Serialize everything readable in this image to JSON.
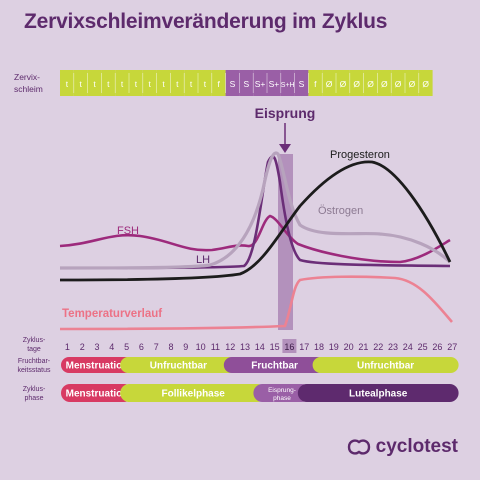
{
  "title": "Zervixschleimveränderung im Zyklus",
  "brand": "cyclotest",
  "mucus": {
    "label_lines": [
      "Zervix-",
      "schleim"
    ],
    "cells": [
      "t",
      "t",
      "t",
      "t",
      "t",
      "t",
      "t",
      "t",
      "t",
      "t",
      "t",
      "f",
      "S",
      "S",
      "S+",
      "S+",
      "S+H",
      "S",
      "f",
      "Ø",
      "Ø",
      "Ø",
      "Ø",
      "Ø",
      "Ø",
      "Ø",
      "Ø"
    ],
    "colors": {
      "t": "#c7d73a",
      "f": "#c7d73a",
      "S": "#9a5fa6",
      "S+": "#9a5fa6",
      "S+H": "#9a5fa6",
      "Ø": "#c7d73a"
    }
  },
  "ovulation": {
    "label": "Eisprung",
    "day": 16
  },
  "curves": {
    "fsh": "FSH",
    "lh": "LH",
    "progesterone": "Progesteron",
    "estrogen": "Östrogen",
    "temperature": "Temperaturverlauf"
  },
  "days": {
    "label_lines": [
      "Zyklus-",
      "tage"
    ],
    "values": [
      "1",
      "2",
      "3",
      "4",
      "5",
      "6",
      "7",
      "8",
      "9",
      "10",
      "11",
      "12",
      "13",
      "14",
      "15",
      "16",
      "17",
      "18",
      "19",
      "20",
      "21",
      "22",
      "23",
      "24",
      "25",
      "26",
      "27"
    ]
  },
  "fertility": {
    "label_lines": [
      "Fruchtbar-",
      "keitsstatus"
    ],
    "segments": [
      {
        "label": "Menstruation",
        "start_day": 1,
        "end_day": 5,
        "color": "#d83a63"
      },
      {
        "label": "Unfruchtbar",
        "start_day": 5,
        "end_day": 12,
        "color": "#c7d73a"
      },
      {
        "label": "Fruchtbar",
        "start_day": 12,
        "end_day": 18,
        "color": "#8f4f99"
      },
      {
        "label": "Unfruchtbar",
        "start_day": 18,
        "end_day": 27,
        "color": "#c7d73a"
      }
    ]
  },
  "phases": {
    "label_lines": [
      "Zyklus-",
      "phase"
    ],
    "segments": [
      {
        "label": "Menstruation",
        "start_day": 1,
        "end_day": 5,
        "color": "#d83a63"
      },
      {
        "label": "Follikelphase",
        "start_day": 5,
        "end_day": 14,
        "color": "#c7d73a"
      },
      {
        "label": "Eisprung-",
        "label2": "phase",
        "start_day": 14,
        "end_day": 17,
        "color": "#9a5fa6"
      },
      {
        "label": "Lutealphase",
        "start_day": 17,
        "end_day": 27,
        "color": "#5e2a6e"
      }
    ]
  }
}
